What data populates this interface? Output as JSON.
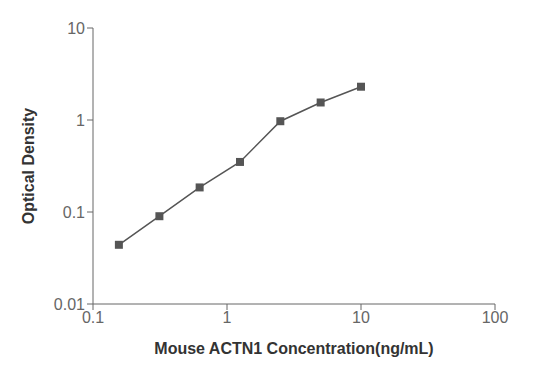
{
  "chart_data": {
    "type": "line",
    "x": [
      0.156,
      0.313,
      0.625,
      1.25,
      2.5,
      5.0,
      10.0
    ],
    "values": [
      0.044,
      0.09,
      0.185,
      0.35,
      0.97,
      1.55,
      2.3
    ],
    "xlabel": "Mouse ACTN1 Concentration(ng/mL)",
    "ylabel": "Optical Density",
    "xlim": [
      0.1,
      100
    ],
    "ylim": [
      0.01,
      10
    ],
    "xticks": [
      0.1,
      1,
      10,
      100
    ],
    "yticks": [
      0.01,
      0.1,
      1,
      10
    ],
    "log": true,
    "grid": false,
    "color": "#555555",
    "marker": "square"
  }
}
